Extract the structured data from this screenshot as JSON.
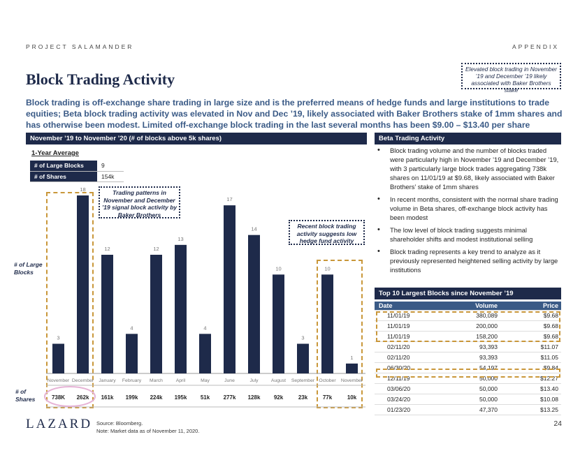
{
  "header": {
    "project": "PROJECT SALAMANDER",
    "section": "APPENDIX"
  },
  "title": "Block Trading Activity",
  "note": "Elevated block trading in November ’19 and December ’19 likely associated with Baker Brothers stake",
  "subtitle": "Block trading is off-exchange share trading in large size and is the preferred means of hedge funds and large institutions to trade equities; Beta block trading activity was elevated in Nov and Dec ’19, likely associated with Baker Brothers stake of 1mm shares and has otherwise been modest. Limited off-exchange block trading in the last several months has been $9.00 – $13.40 per share",
  "left_header": "November ’19 to November ’20 (# of blocks above 5k shares)",
  "right_header": "Beta Trading Activity",
  "average": {
    "label": "1-Year Average",
    "rows": [
      {
        "key": "# of Large Blocks",
        "value": "9"
      },
      {
        "key": "# of Shares",
        "value": "154k"
      }
    ]
  },
  "chart_labels": {
    "y_label_1": "# of Large",
    "y_label_2": "Blocks",
    "shares_1": "# of",
    "shares_2": "Shares"
  },
  "callouts": {
    "baker": "Trading patterns in November and December ’19 signal block activity by Baker Brothers",
    "recent": "Recent block trading activity suggests low hedge fund activity"
  },
  "chart_data": {
    "type": "bar",
    "title": "November ’19 to November ’20 (# of blocks above 5k shares)",
    "ylabel": "# of Large Blocks",
    "categories": [
      "November",
      "December",
      "January",
      "February",
      "March",
      "April",
      "May",
      "June",
      "July",
      "August",
      "September",
      "October",
      "November"
    ],
    "values": [
      3,
      18,
      12,
      4,
      12,
      13,
      4,
      17,
      14,
      10,
      3,
      10,
      1
    ],
    "shares": [
      "738K",
      "262k",
      "161k",
      "199k",
      "224k",
      "195k",
      "51k",
      "277k",
      "128k",
      "92k",
      "23k",
      "77k",
      "10k"
    ],
    "ylim": [
      0,
      19
    ],
    "colors": {
      "bar": "#1e2a4a",
      "highlight": "#c9973a",
      "circle": "#e6b3d6"
    }
  },
  "bullets": [
    "Block trading volume and the number of blocks traded were particularly high in November ’19 and December ’19, with 3 particularly large block trades aggregating 738k shares on 11/01/19 at $9.68, likely associated with Baker Brothers’ stake of 1mm shares",
    "In recent months, consistent with the normal share trading volume in Beta shares, off-exchange block activity has been modest",
    "The low level of block trading suggests minimal shareholder shifts and modest institutional selling",
    "Block trading represents a key trend to analyze as it previously represented heightened selling activity by large institutions"
  ],
  "top10": {
    "header": "Top 10 Largest Blocks since November ’19",
    "columns": [
      "Date",
      "Volume",
      "Price"
    ],
    "rows": [
      [
        "11/01/19",
        "380,089",
        "$9.68"
      ],
      [
        "11/01/19",
        "200,000",
        "$9.68"
      ],
      [
        "11/01/19",
        "158,200",
        "$9.68"
      ],
      [
        "02/11/20",
        "93,393",
        "$11.07"
      ],
      [
        "02/11/20",
        "93,393",
        "$11.05"
      ],
      [
        "06/30/20",
        "54,197",
        "$9.84"
      ],
      [
        "12/11/19",
        "50,000",
        "$12.27"
      ],
      [
        "03/06/20",
        "50,000",
        "$13.40"
      ],
      [
        "03/24/20",
        "50,000",
        "$10.08"
      ],
      [
        "01/23/20",
        "47,370",
        "$13.25"
      ]
    ]
  },
  "footer": {
    "logo": "LAZARD",
    "source": "Source:  Bloomberg.",
    "note": "Note:     Market data as of November 11, 2020.",
    "page": "24"
  }
}
